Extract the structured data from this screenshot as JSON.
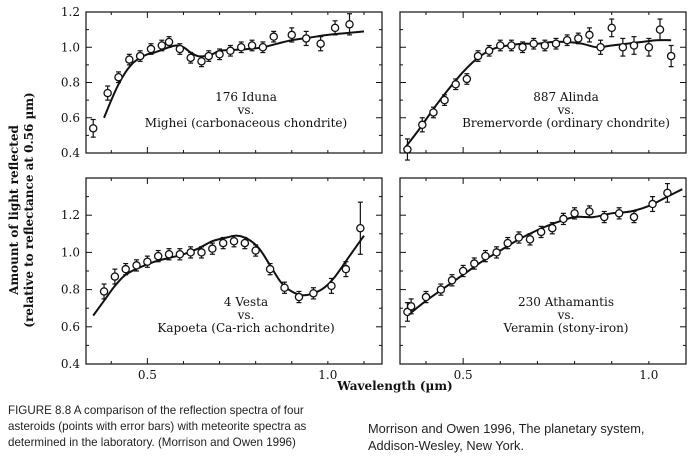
{
  "figure": {
    "y_axis_title_lines": [
      "Amount of light reflected",
      "(relative to reflectance at 0.56 µm)"
    ],
    "x_axis_title": "Wavelength (µm)"
  },
  "chart_data": [
    {
      "type": "scatter",
      "panel": "top-left",
      "annotation": [
        "176 Iduna",
        "vs.",
        "Mighei (carbonaceous chondrite)"
      ],
      "xlim": [
        0.33,
        1.15
      ],
      "ylim": [
        0.4,
        1.2
      ],
      "y_ticks": [
        "0.4",
        "0.6",
        "0.8",
        "1.0",
        "1.2"
      ],
      "x_ticks": [],
      "series": [
        {
          "x": [
            0.35,
            0.39,
            0.42,
            0.45,
            0.48,
            0.51,
            0.54,
            0.56,
            0.59,
            0.62,
            0.65,
            0.67,
            0.7,
            0.73,
            0.76,
            0.79,
            0.82,
            0.85,
            0.9,
            0.94,
            0.98,
            1.02,
            1.06
          ],
          "y": [
            0.54,
            0.74,
            0.83,
            0.93,
            0.95,
            0.99,
            1.01,
            1.03,
            0.99,
            0.94,
            0.92,
            0.95,
            0.96,
            0.98,
            1.0,
            1.01,
            1.0,
            1.06,
            1.07,
            1.05,
            1.02,
            1.11,
            1.13
          ],
          "err": [
            0.05,
            0.04,
            0.03,
            0.03,
            0.03,
            0.03,
            0.03,
            0.03,
            0.03,
            0.03,
            0.03,
            0.03,
            0.03,
            0.03,
            0.03,
            0.03,
            0.03,
            0.03,
            0.04,
            0.04,
            0.04,
            0.04,
            0.06
          ]
        },
        {
          "x": [
            0.38,
            0.4,
            0.42,
            0.44,
            0.46,
            0.48,
            0.5,
            0.52,
            0.54,
            0.56,
            0.58,
            0.6,
            0.62,
            0.64,
            0.66,
            0.68,
            0.7,
            0.74,
            0.78,
            0.82,
            0.86,
            0.9,
            0.95,
            1.0,
            1.05,
            1.1
          ],
          "y": [
            0.6,
            0.7,
            0.79,
            0.86,
            0.91,
            0.94,
            0.96,
            0.97,
            0.985,
            1.0,
            1.01,
            1.0,
            0.97,
            0.95,
            0.95,
            0.96,
            0.98,
            0.985,
            0.99,
            1.0,
            1.02,
            1.04,
            1.055,
            1.07,
            1.08,
            1.09
          ]
        }
      ]
    },
    {
      "type": "scatter",
      "panel": "top-right",
      "annotation": [
        "887 Alinda",
        "vs.",
        "Bremervorde (ordinary chondrite)"
      ],
      "xlim": [
        0.33,
        1.1
      ],
      "ylim": [
        0.4,
        1.2
      ],
      "y_ticks": [],
      "x_ticks": [],
      "series": [
        {
          "x": [
            0.35,
            0.39,
            0.42,
            0.45,
            0.48,
            0.51,
            0.54,
            0.57,
            0.6,
            0.63,
            0.66,
            0.69,
            0.72,
            0.75,
            0.78,
            0.81,
            0.84,
            0.87,
            0.9,
            0.93,
            0.96,
            1.0,
            1.03,
            1.06
          ],
          "y": [
            0.42,
            0.56,
            0.63,
            0.7,
            0.79,
            0.82,
            0.95,
            0.98,
            1.01,
            1.01,
            1.0,
            1.02,
            1.01,
            1.02,
            1.04,
            1.05,
            1.07,
            1.0,
            1.11,
            1.0,
            1.01,
            1.0,
            1.1,
            0.95
          ],
          "err": [
            0.06,
            0.04,
            0.03,
            0.03,
            0.03,
            0.03,
            0.03,
            0.03,
            0.03,
            0.03,
            0.03,
            0.03,
            0.03,
            0.03,
            0.03,
            0.03,
            0.04,
            0.04,
            0.05,
            0.05,
            0.05,
            0.05,
            0.06,
            0.06
          ]
        },
        {
          "x": [
            0.34,
            0.38,
            0.42,
            0.46,
            0.5,
            0.54,
            0.58,
            0.62,
            0.66,
            0.7,
            0.74,
            0.78,
            0.82,
            0.86,
            0.9,
            0.94,
            0.98,
            1.02,
            1.06
          ],
          "y": [
            0.42,
            0.53,
            0.65,
            0.76,
            0.86,
            0.94,
            0.99,
            1.01,
            1.02,
            1.02,
            1.03,
            1.03,
            1.02,
            1.0,
            1.01,
            1.02,
            1.03,
            1.04,
            1.04
          ]
        }
      ]
    },
    {
      "type": "scatter",
      "panel": "bottom-left",
      "annotation": [
        "4 Vesta",
        "vs.",
        "Kapoeta (Ca-rich achondrite)"
      ],
      "xlim": [
        0.33,
        1.15
      ],
      "ylim": [
        0.4,
        1.4
      ],
      "y_ticks": [
        "0.4",
        "0.6",
        "0.8",
        "1.0",
        "1.2"
      ],
      "x_ticks": [
        "0.5",
        "1.0"
      ],
      "series": [
        {
          "x": [
            0.38,
            0.41,
            0.44,
            0.47,
            0.5,
            0.53,
            0.56,
            0.59,
            0.62,
            0.65,
            0.68,
            0.71,
            0.74,
            0.77,
            0.8,
            0.84,
            0.88,
            0.92,
            0.96,
            1.01,
            1.05,
            1.09
          ],
          "y": [
            0.79,
            0.87,
            0.91,
            0.93,
            0.95,
            0.98,
            0.99,
            0.99,
            1.0,
            1.0,
            1.02,
            1.05,
            1.06,
            1.05,
            1.01,
            0.91,
            0.81,
            0.76,
            0.78,
            0.82,
            0.91,
            1.13
          ],
          "err": [
            0.04,
            0.04,
            0.03,
            0.03,
            0.03,
            0.03,
            0.03,
            0.03,
            0.03,
            0.03,
            0.03,
            0.03,
            0.03,
            0.03,
            0.03,
            0.03,
            0.03,
            0.03,
            0.03,
            0.04,
            0.04,
            0.14
          ]
        },
        {
          "x": [
            0.35,
            0.38,
            0.41,
            0.44,
            0.48,
            0.52,
            0.56,
            0.6,
            0.64,
            0.68,
            0.72,
            0.75,
            0.78,
            0.81,
            0.84,
            0.87,
            0.9,
            0.93,
            0.96,
            0.99,
            1.02,
            1.06,
            1.1
          ],
          "y": [
            0.66,
            0.74,
            0.82,
            0.88,
            0.92,
            0.95,
            0.97,
            0.99,
            1.02,
            1.06,
            1.08,
            1.09,
            1.07,
            1.02,
            0.93,
            0.84,
            0.79,
            0.77,
            0.78,
            0.81,
            0.87,
            0.98,
            1.09
          ]
        }
      ]
    },
    {
      "type": "scatter",
      "panel": "bottom-right",
      "annotation": [
        "230 Athamantis",
        "vs.",
        "Veramin (stony-iron)"
      ],
      "xlim": [
        0.33,
        1.1
      ],
      "ylim": [
        0.4,
        1.4
      ],
      "y_ticks": [],
      "x_ticks": [
        "0.5",
        "1.0"
      ],
      "series": [
        {
          "x": [
            0.35,
            0.36,
            0.4,
            0.44,
            0.47,
            0.5,
            0.53,
            0.56,
            0.59,
            0.62,
            0.65,
            0.68,
            0.71,
            0.74,
            0.77,
            0.8,
            0.84,
            0.88,
            0.92,
            0.96,
            1.01,
            1.05
          ],
          "y": [
            0.68,
            0.71,
            0.76,
            0.8,
            0.85,
            0.9,
            0.94,
            0.98,
            1.0,
            1.05,
            1.08,
            1.07,
            1.11,
            1.13,
            1.18,
            1.21,
            1.22,
            1.19,
            1.21,
            1.19,
            1.26,
            1.32
          ],
          "err": [
            0.05,
            0.04,
            0.03,
            0.03,
            0.03,
            0.03,
            0.03,
            0.03,
            0.03,
            0.03,
            0.03,
            0.03,
            0.03,
            0.03,
            0.03,
            0.03,
            0.03,
            0.03,
            0.03,
            0.03,
            0.04,
            0.05
          ]
        },
        {
          "x": [
            0.35,
            0.4,
            0.45,
            0.5,
            0.55,
            0.6,
            0.65,
            0.7,
            0.75,
            0.8,
            0.85,
            0.9,
            0.95,
            1.0,
            1.05,
            1.09
          ],
          "y": [
            0.66,
            0.74,
            0.81,
            0.88,
            0.95,
            1.01,
            1.07,
            1.12,
            1.16,
            1.19,
            1.19,
            1.21,
            1.22,
            1.25,
            1.3,
            1.34
          ]
        }
      ]
    }
  ],
  "caption": {
    "lines": [
      "FIGURE 8.8  A comparison of the reflection spectra of four",
      "asteroids (points with error bars) with meteorite spectra as",
      "determined in the laboratory. (Morrison and Owen 1996)"
    ]
  },
  "credit": {
    "lines": [
      "Morrison and Owen 1996, The planetary system,",
      "Addison-Wesley, New York."
    ]
  }
}
